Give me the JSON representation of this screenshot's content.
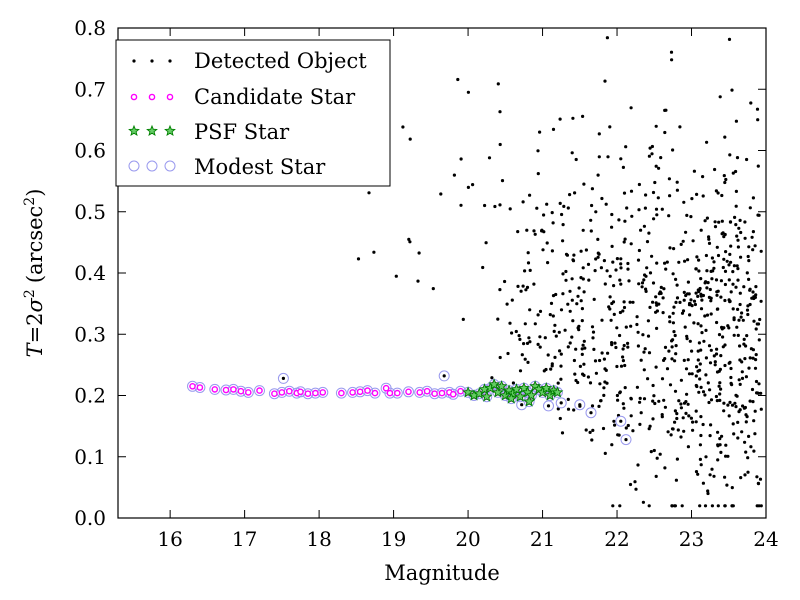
{
  "chart_data": {
    "type": "scatter",
    "xlabel": "Magnitude",
    "ylabel": "T = 2σ² (arcsec²)",
    "ylabel_parts": {
      "T": "T",
      "eq": "=",
      "two": "2",
      "sigma": "σ",
      "exp2": "2",
      "unit": "(arcsec",
      "unit_exp": "2",
      "close": ")"
    },
    "xlim": [
      15.3,
      24
    ],
    "ylim": [
      0.0,
      0.8
    ],
    "xticks": [
      "16",
      "17",
      "18",
      "19",
      "20",
      "21",
      "22",
      "23",
      "24"
    ],
    "yticks": [
      "0.0",
      "0.1",
      "0.2",
      "0.3",
      "0.4",
      "0.5",
      "0.6",
      "0.7",
      "0.8"
    ],
    "legend_position": "top-left",
    "grid": false,
    "series": [
      {
        "name": "Detected Object",
        "marker": "dot",
        "color": "#000000"
      },
      {
        "name": "Candidate Star",
        "marker": "circle",
        "color": "#ff00ff"
      },
      {
        "name": "PSF Star",
        "marker": "star",
        "color": "#008000"
      },
      {
        "name": "Modest Star",
        "marker": "open-circle",
        "color": "#9999ee"
      }
    ],
    "candidate_points": [
      [
        16.3,
        0.215
      ],
      [
        16.4,
        0.213
      ],
      [
        16.6,
        0.21
      ],
      [
        16.75,
        0.209
      ],
      [
        16.85,
        0.21
      ],
      [
        16.95,
        0.207
      ],
      [
        17.05,
        0.205
      ],
      [
        17.2,
        0.208
      ],
      [
        17.4,
        0.203
      ],
      [
        17.5,
        0.205
      ],
      [
        17.6,
        0.207
      ],
      [
        17.7,
        0.204
      ],
      [
        17.75,
        0.206
      ],
      [
        17.85,
        0.203
      ],
      [
        17.95,
        0.204
      ],
      [
        18.05,
        0.205
      ],
      [
        18.3,
        0.204
      ],
      [
        18.45,
        0.205
      ],
      [
        18.55,
        0.206
      ],
      [
        18.65,
        0.208
      ],
      [
        18.75,
        0.204
      ],
      [
        18.9,
        0.212
      ],
      [
        18.95,
        0.204
      ],
      [
        19.05,
        0.204
      ],
      [
        19.2,
        0.206
      ],
      [
        19.35,
        0.205
      ],
      [
        19.45,
        0.207
      ],
      [
        19.55,
        0.203
      ],
      [
        19.65,
        0.204
      ],
      [
        19.75,
        0.205
      ],
      [
        19.8,
        0.202
      ],
      [
        19.9,
        0.207
      ]
    ],
    "psf_points": [
      [
        20.0,
        0.205
      ],
      [
        20.08,
        0.2
      ],
      [
        20.15,
        0.203
      ],
      [
        20.22,
        0.21
      ],
      [
        20.3,
        0.212
      ],
      [
        20.35,
        0.218
      ],
      [
        20.4,
        0.205
      ],
      [
        20.45,
        0.215
      ],
      [
        20.5,
        0.2
      ],
      [
        20.55,
        0.208
      ],
      [
        20.6,
        0.203
      ],
      [
        20.65,
        0.21
      ],
      [
        20.7,
        0.198
      ],
      [
        20.75,
        0.212
      ],
      [
        20.8,
        0.205
      ],
      [
        20.85,
        0.2
      ],
      [
        20.9,
        0.215
      ],
      [
        20.95,
        0.21
      ],
      [
        21.0,
        0.205
      ],
      [
        21.05,
        0.212
      ],
      [
        21.1,
        0.2
      ],
      [
        21.15,
        0.208
      ],
      [
        21.2,
        0.205
      ],
      [
        20.25,
        0.198
      ],
      [
        20.58,
        0.195
      ],
      [
        20.82,
        0.19
      ]
    ],
    "modest_only_points": [
      [
        17.52,
        0.228
      ],
      [
        19.68,
        0.232
      ],
      [
        20.72,
        0.185
      ],
      [
        21.08,
        0.183
      ],
      [
        21.25,
        0.188
      ],
      [
        21.5,
        0.185
      ],
      [
        21.65,
        0.172
      ],
      [
        22.05,
        0.158
      ],
      [
        22.12,
        0.128
      ]
    ]
  }
}
